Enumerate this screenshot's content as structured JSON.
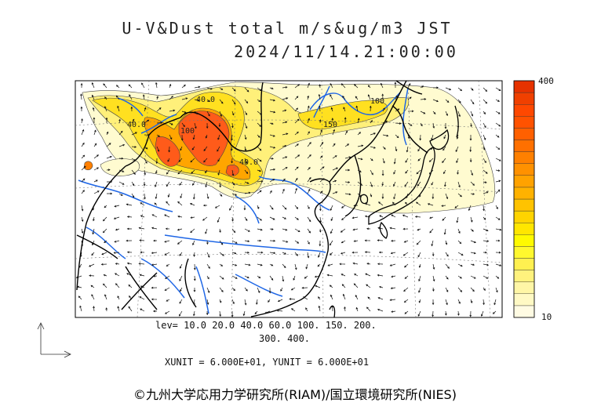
{
  "title": {
    "line1": "U-V&Dust total m/s&ug/m3 JST",
    "line2": "2024/11/14.21:00:00"
  },
  "colorbar": {
    "max_label": "400",
    "min_label": "10",
    "colors": [
      "#fffbe3",
      "#fff9c4",
      "#fff6a6",
      "#fff27d",
      "#fff050",
      "#fff82e",
      "#fffa00",
      "#ffe600",
      "#ffd400",
      "#ffc300",
      "#ffb200",
      "#ffa200",
      "#ff9100",
      "#ff8000",
      "#ff7000",
      "#ff6000",
      "#ff5200",
      "#ff4800",
      "#f04000",
      "#e63200"
    ]
  },
  "legend": {
    "levels_line1": "lev= 10.0 20.0 40.0 60.0 100. 150. 200.",
    "levels_line2": "300. 400.",
    "units": "XUNIT = 6.000E+01, YUNIT = 6.000E+01"
  },
  "map": {
    "contour_labels": [
      "40.0",
      "100",
      "150",
      "40.0",
      "40.0",
      "100"
    ],
    "colors": {
      "light": "#fffbd0",
      "mid": "#fff07a",
      "yellow": "#ffe020",
      "orange": "#ffa500",
      "red": "#ff5b1a",
      "river": "#1e66e6",
      "coast": "#000000"
    }
  },
  "copyright": "©九州大学応用力学研究所(RIAM)/国立環境研究所(NIES)"
}
